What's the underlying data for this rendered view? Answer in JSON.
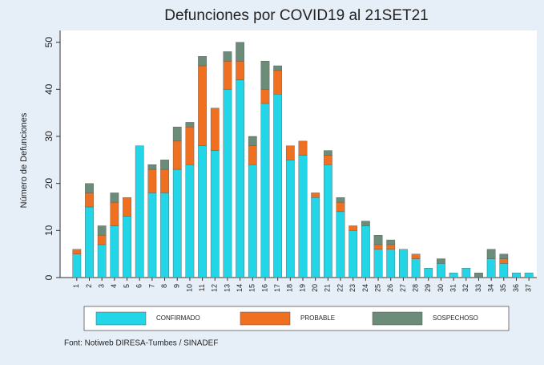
{
  "chart_data": {
    "type": "stacked_bar",
    "title": "Defunciones por COVID19 al 21SET21",
    "y_label": "Número de Defunciones",
    "source": "Font: Notiweb DIRESA-Tumbes / SINADEF",
    "categories": [
      "1",
      "2",
      "3",
      "4",
      "5",
      "6",
      "7",
      "8",
      "9",
      "10",
      "11",
      "12",
      "13",
      "14",
      "15",
      "16",
      "17",
      "18",
      "19",
      "20",
      "21",
      "22",
      "23",
      "24",
      "25",
      "26",
      "27",
      "28",
      "29",
      "30",
      "31",
      "32",
      "33",
      "34",
      "35",
      "36",
      "37"
    ],
    "series": [
      {
        "name": "CONFIRMADO",
        "color": "#22d6e8",
        "values": [
          5,
          15,
          7,
          11,
          13,
          28,
          18,
          18,
          23,
          24,
          28,
          27,
          40,
          42,
          24,
          37,
          39,
          25,
          26,
          17,
          24,
          14,
          10,
          11,
          6,
          6,
          6,
          4,
          2,
          3,
          1,
          2,
          0,
          4,
          3,
          1,
          1
        ]
      },
      {
        "name": "PROBABLE",
        "color": "#f07022",
        "values": [
          1,
          3,
          2,
          5,
          4,
          0,
          5,
          5,
          6,
          8,
          17,
          9,
          6,
          4,
          4,
          3,
          5,
          3,
          3,
          1,
          2,
          2,
          1,
          0,
          1,
          1,
          0,
          1,
          0,
          0,
          0,
          0,
          0,
          0,
          1,
          0,
          0
        ]
      },
      {
        "name": "SOSPECHOSO",
        "color": "#6b8c78",
        "values": [
          0,
          2,
          2,
          2,
          0,
          0,
          1,
          2,
          3,
          1,
          2,
          0,
          2,
          4,
          2,
          6,
          1,
          0,
          0,
          0,
          1,
          1,
          0,
          1,
          2,
          1,
          0,
          0,
          0,
          1,
          0,
          0,
          1,
          2,
          1,
          0,
          0
        ]
      }
    ],
    "ylim": [
      0,
      52.5
    ],
    "yticks": [
      0,
      10,
      20,
      30,
      40,
      50
    ]
  }
}
